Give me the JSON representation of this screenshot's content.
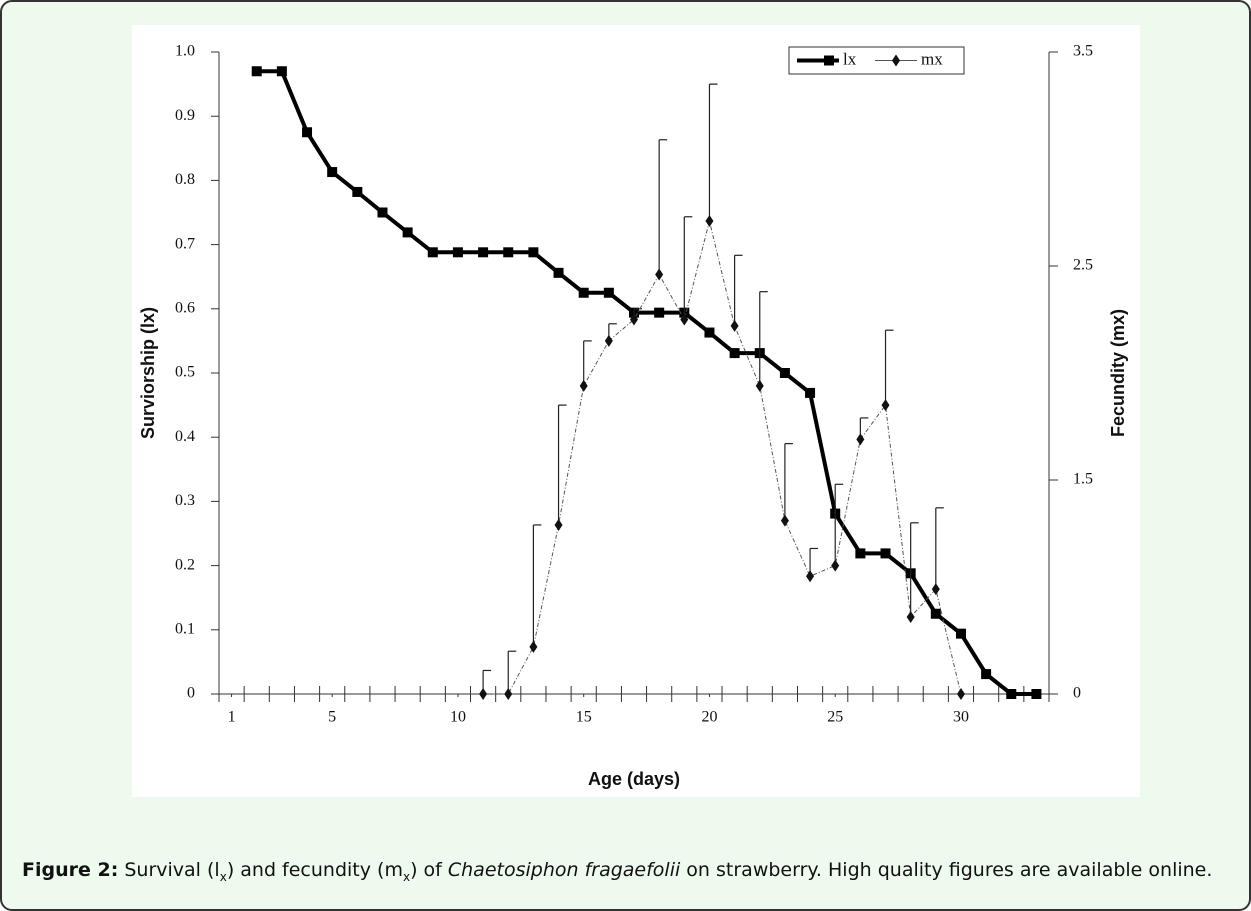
{
  "chart_data": {
    "type": "line",
    "xlabel": "Age (days)",
    "ylabel": "Surviorship (lx)",
    "y2label": "Fecundity (mx)",
    "xlim": [
      0.5,
      33.5
    ],
    "xticks": [
      1,
      5,
      10,
      15,
      20,
      25,
      30
    ],
    "ylim": [
      0,
      1
    ],
    "yticks": [
      0,
      0.1,
      0.2,
      0.3,
      0.4,
      0.5,
      0.6,
      0.7,
      0.8,
      0.9,
      {
        "value": 1,
        "label": "1.0"
      }
    ],
    "y2lim": [
      0.5,
      3.5
    ],
    "y2ticks": [
      {
        "value": 0.5,
        "label": "0"
      },
      1.5,
      2.5,
      3.5
    ],
    "legend": "upper right",
    "series": [
      {
        "name": "lx",
        "color": "#000000",
        "x": [
          2,
          3,
          4,
          5,
          6,
          7,
          8,
          9,
          10,
          11,
          12,
          13,
          14,
          15,
          16,
          17,
          18,
          19,
          20,
          21,
          22,
          23,
          24,
          25,
          26,
          27,
          28,
          29,
          30,
          31,
          32,
          33
        ],
        "values": [
          0.97,
          0.97,
          0.875,
          0.813,
          0.782,
          0.75,
          0.719,
          0.688,
          0.688,
          0.688,
          0.688,
          0.688,
          0.656,
          0.625,
          0.625,
          0.594,
          0.594,
          0.594,
          0.563,
          0.531,
          0.531,
          0.5,
          0.469,
          0.281,
          0.219,
          0.219,
          0.188,
          0.125,
          0.094,
          0.031,
          0,
          0
        ]
      },
      {
        "name": "mx",
        "color": "#555555",
        "axis": "y2",
        "x": [
          11,
          12,
          13,
          14,
          15,
          16,
          17,
          18,
          19,
          20,
          21,
          22,
          23,
          24,
          25,
          26,
          27,
          28,
          29,
          30
        ],
        "values": [
          0.5,
          0.5,
          0.72,
          1.29,
          1.94,
          2.15,
          2.25,
          2.46,
          2.25,
          2.71,
          2.22,
          1.94,
          1.31,
          1.05,
          1.1,
          1.69,
          1.85,
          0.86,
          0.99,
          0.5
        ],
        "errors": [
          0.11,
          0.2,
          0.57,
          0.56,
          0.21,
          0.08,
          0.05,
          0.63,
          0.48,
          0.64,
          0.33,
          0.44,
          0.36,
          0.13,
          0.38,
          0.1,
          0.35,
          0.44,
          0.38,
          null
        ]
      }
    ]
  },
  "caption": {
    "label": "Figure 2:",
    "parts": [
      "Survival (l",
      "x",
      ") and fecundity (m",
      "x",
      ") of ",
      "Chaetosiphon fragaefolii",
      " on strawberry. High quality figures are available online."
    ]
  }
}
